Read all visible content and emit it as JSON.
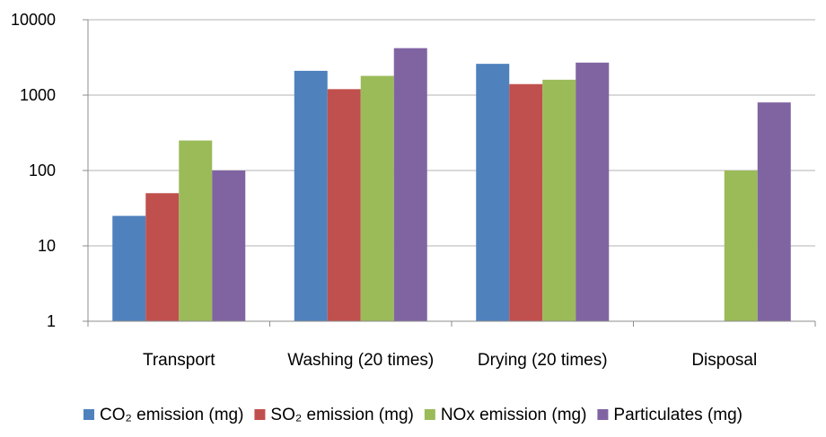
{
  "chart_data": {
    "type": "bar",
    "y_scale": "log",
    "ylim": [
      1,
      10000
    ],
    "y_ticks": [
      "1",
      "10",
      "100",
      "1000",
      "10000"
    ],
    "grid": true,
    "legend_position": "bottom",
    "categories": [
      "Transport",
      "Washing (20 times)",
      "Drying (20 times)",
      "Disposal"
    ],
    "series": [
      {
        "name": "CO₂ emission (mg)",
        "color": "#4f81bd",
        "values": [
          25,
          2100,
          2600,
          null
        ]
      },
      {
        "name": "SO₂ emission (mg)",
        "color": "#c0504d",
        "values": [
          50,
          1200,
          1400,
          null
        ]
      },
      {
        "name": "NOx emission (mg)",
        "color": "#9bbb59",
        "values": [
          250,
          1800,
          1600,
          100
        ]
      },
      {
        "name": "Particulates (mg)",
        "color": "#8064a2",
        "values": [
          100,
          4200,
          2700,
          800
        ]
      }
    ]
  }
}
